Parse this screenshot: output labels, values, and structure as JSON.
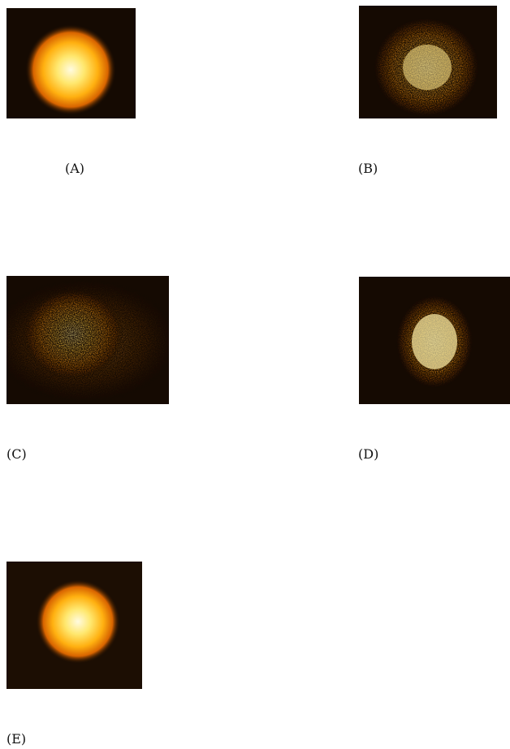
{
  "panels": [
    {
      "id": "a",
      "label": "(A)"
    },
    {
      "id": "b",
      "label": "(B)"
    },
    {
      "id": "c",
      "label": "(C)"
    },
    {
      "id": "d",
      "label": "(D)"
    },
    {
      "id": "e",
      "label": "(E)"
    }
  ],
  "colors": {
    "background": "#150a02",
    "glow_core": "#fff8d0",
    "glow_mid": "#ffc020",
    "glow_edge": "#e06a00"
  }
}
